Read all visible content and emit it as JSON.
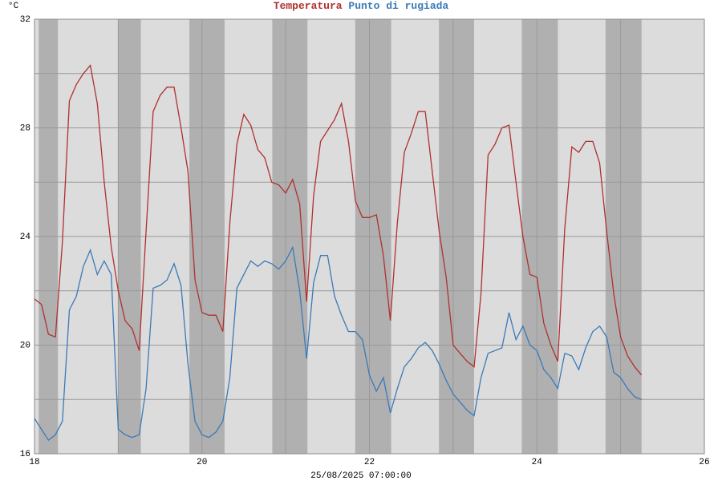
{
  "chart_data": {
    "type": "line",
    "y_label": "°C",
    "x_label": "25/08/2025 07:00:00",
    "xlim": [
      18,
      26
    ],
    "xticks": [
      18,
      20,
      22,
      24,
      26
    ],
    "x_minor_gridlines": [
      19,
      21,
      23,
      25
    ],
    "ylim": [
      16,
      32
    ],
    "yticks": [
      16,
      20,
      24,
      28,
      32
    ],
    "y_minor_gridlines": [
      18,
      22,
      26,
      30
    ],
    "grid": true,
    "shaded_bands": [
      [
        18.05,
        18.28
      ],
      [
        19.0,
        19.27
      ],
      [
        19.85,
        20.27
      ],
      [
        20.84,
        21.26
      ],
      [
        21.83,
        22.26
      ],
      [
        22.83,
        23.25
      ],
      [
        23.82,
        24.25
      ],
      [
        24.82,
        25.25
      ]
    ],
    "x": [
      18,
      18.083,
      18.167,
      18.25,
      18.333,
      18.417,
      18.5,
      18.583,
      18.667,
      18.75,
      18.833,
      18.917,
      19,
      19.083,
      19.167,
      19.25,
      19.333,
      19.417,
      19.5,
      19.583,
      19.667,
      19.75,
      19.833,
      19.917,
      20,
      20.083,
      20.167,
      20.25,
      20.333,
      20.417,
      20.5,
      20.583,
      20.667,
      20.75,
      20.833,
      20.917,
      21,
      21.083,
      21.167,
      21.25,
      21.333,
      21.417,
      21.5,
      21.583,
      21.667,
      21.75,
      21.833,
      21.917,
      22,
      22.083,
      22.167,
      22.25,
      22.333,
      22.417,
      22.5,
      22.583,
      22.667,
      22.75,
      22.833,
      22.917,
      23,
      23.083,
      23.167,
      23.25,
      23.333,
      23.417,
      23.5,
      23.583,
      23.667,
      23.75,
      23.833,
      23.917,
      24,
      24.083,
      24.167,
      24.25,
      24.333,
      24.417,
      24.5,
      24.583,
      24.667,
      24.75,
      24.833,
      24.917,
      25,
      25.083,
      25.167,
      25.25
    ],
    "series": [
      {
        "name": "Temperatura",
        "color": "#b03030",
        "values": [
          21.7,
          21.5,
          20.4,
          20.3,
          23.8,
          29.0,
          29.6,
          30.0,
          30.3,
          28.9,
          26.0,
          23.6,
          22.0,
          20.9,
          20.6,
          19.8,
          24.2,
          28.6,
          29.2,
          29.5,
          29.5,
          28.0,
          26.4,
          22.4,
          21.2,
          21.1,
          21.1,
          20.5,
          24.5,
          27.4,
          28.5,
          28.1,
          27.2,
          26.9,
          26.0,
          25.9,
          25.6,
          26.1,
          25.2,
          21.6,
          25.5,
          27.5,
          27.9,
          28.3,
          28.9,
          27.5,
          25.3,
          24.7,
          24.7,
          24.8,
          23.3,
          20.9,
          24.5,
          27.1,
          27.8,
          28.6,
          28.6,
          26.4,
          24.2,
          22.5,
          20.0,
          19.7,
          19.4,
          19.2,
          21.9,
          27.0,
          27.4,
          28.0,
          28.1,
          26.0,
          24.0,
          22.6,
          22.5,
          20.8,
          20.0,
          19.4,
          24.3,
          27.3,
          27.1,
          27.5,
          27.5,
          26.7,
          24.2,
          21.9,
          20.3,
          19.6,
          19.2,
          18.9
        ]
      },
      {
        "name": "Punto di rugiada",
        "color": "#3a7ab8",
        "values": [
          17.3,
          16.9,
          16.5,
          16.7,
          17.2,
          21.3,
          21.8,
          22.9,
          23.5,
          22.6,
          23.1,
          22.6,
          16.9,
          16.7,
          16.6,
          16.7,
          18.4,
          22.1,
          22.2,
          22.4,
          23.0,
          22.2,
          19.3,
          17.2,
          16.7,
          16.6,
          16.8,
          17.2,
          18.8,
          22.1,
          22.6,
          23.1,
          22.9,
          23.1,
          23.0,
          22.8,
          23.1,
          23.6,
          22.0,
          19.5,
          22.3,
          23.3,
          23.3,
          21.8,
          21.1,
          20.5,
          20.5,
          20.2,
          18.9,
          18.3,
          18.8,
          17.5,
          18.4,
          19.2,
          19.5,
          19.9,
          20.1,
          19.8,
          19.3,
          18.7,
          18.2,
          17.9,
          17.6,
          17.4,
          18.8,
          19.7,
          19.8,
          19.9,
          21.2,
          20.2,
          20.7,
          20.0,
          19.8,
          19.1,
          18.8,
          18.4,
          19.7,
          19.6,
          19.1,
          19.9,
          20.5,
          20.7,
          20.3,
          19.0,
          18.8,
          18.4,
          18.1,
          18.0
        ]
      }
    ]
  }
}
